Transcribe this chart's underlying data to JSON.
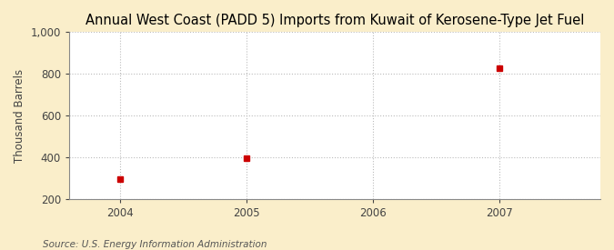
{
  "title": "Annual West Coast (PADD 5) Imports from Kuwait of Kerosene-Type Jet Fuel",
  "ylabel": "Thousand Barrels",
  "source": "Source: U.S. Energy Information Administration",
  "x": [
    2004,
    2005,
    2007
  ],
  "y": [
    296,
    395,
    826
  ],
  "xlim": [
    2003.6,
    2007.8
  ],
  "ylim": [
    200,
    1000
  ],
  "yticks": [
    200,
    400,
    600,
    800,
    1000
  ],
  "ytick_labels": [
    "200",
    "400",
    "600",
    "800",
    "1,000"
  ],
  "xticks": [
    2004,
    2005,
    2006,
    2007
  ],
  "marker_color": "#cc0000",
  "marker": "s",
  "marker_size": 4,
  "plot_bg_color": "#ffffff",
  "fig_bg_color": "#faeeca",
  "grid_color": "#bbbbbb",
  "title_fontsize": 10.5,
  "label_fontsize": 8.5,
  "tick_fontsize": 8.5,
  "source_fontsize": 7.5
}
